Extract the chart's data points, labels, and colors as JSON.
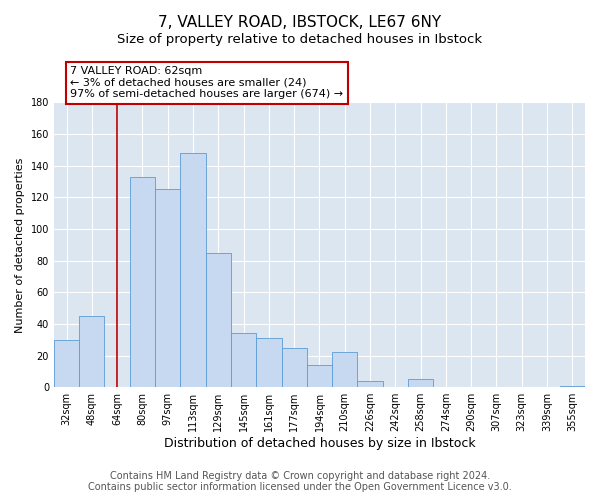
{
  "title": "7, VALLEY ROAD, IBSTOCK, LE67 6NY",
  "subtitle": "Size of property relative to detached houses in Ibstock",
  "xlabel": "Distribution of detached houses by size in Ibstock",
  "ylabel": "Number of detached properties",
  "categories": [
    "32sqm",
    "48sqm",
    "64sqm",
    "80sqm",
    "97sqm",
    "113sqm",
    "129sqm",
    "145sqm",
    "161sqm",
    "177sqm",
    "194sqm",
    "210sqm",
    "226sqm",
    "242sqm",
    "258sqm",
    "274sqm",
    "290sqm",
    "307sqm",
    "323sqm",
    "339sqm",
    "355sqm"
  ],
  "values": [
    30,
    45,
    0,
    133,
    125,
    148,
    85,
    34,
    31,
    25,
    14,
    22,
    4,
    0,
    5,
    0,
    0,
    0,
    0,
    0,
    1
  ],
  "bar_color": "#c6d9f0",
  "bar_edge_color": "#5b9bd5",
  "vline_x_index": 2,
  "vline_color": "#c00000",
  "annotation_line1": "7 VALLEY ROAD: 62sqm",
  "annotation_line2": "← 3% of detached houses are smaller (24)",
  "annotation_line3": "97% of semi-detached houses are larger (674) →",
  "annotation_box_color": "white",
  "annotation_box_edge_color": "#c00000",
  "ylim": [
    0,
    180
  ],
  "yticks": [
    0,
    20,
    40,
    60,
    80,
    100,
    120,
    140,
    160,
    180
  ],
  "footer_line1": "Contains HM Land Registry data © Crown copyright and database right 2024.",
  "footer_line2": "Contains public sector information licensed under the Open Government Licence v3.0.",
  "plot_bg_color": "#dce6f1",
  "title_fontsize": 11,
  "subtitle_fontsize": 9.5,
  "xlabel_fontsize": 9,
  "ylabel_fontsize": 8,
  "tick_fontsize": 7,
  "annotation_fontsize": 8,
  "footer_fontsize": 7
}
